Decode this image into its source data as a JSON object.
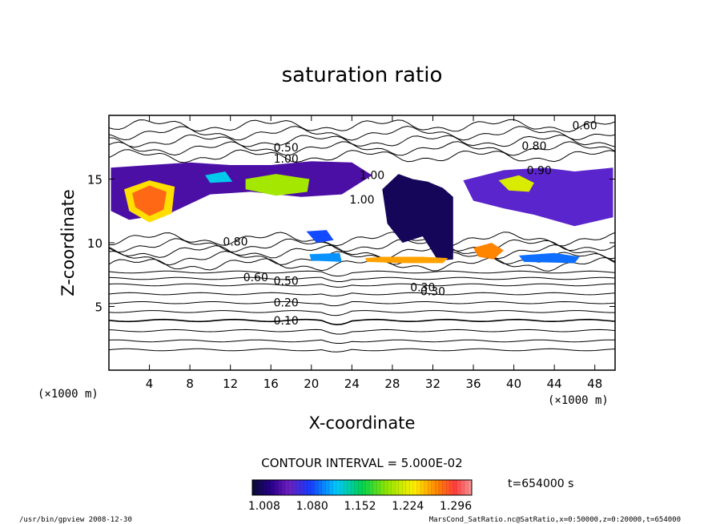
{
  "chart_data": {
    "type": "heatmap",
    "title": "saturation ratio",
    "xlabel": "X-coordinate",
    "ylabel": "Z-coordinate",
    "x_unit_label": "(×1000 m)",
    "y_unit_label": "(×1000 m)",
    "xlim": [
      0,
      50
    ],
    "ylim": [
      0,
      20
    ],
    "x_ticks": [
      4,
      8,
      12,
      16,
      20,
      24,
      28,
      32,
      36,
      40,
      44,
      48
    ],
    "y_ticks": [
      5,
      10,
      15
    ],
    "contour_lines_z": [
      1.6,
      2.3,
      3.1,
      3.9,
      4.6,
      5.3,
      6.0,
      6.7,
      7.2,
      7.7
    ],
    "contour_labels": [
      {
        "text": "0.10",
        "x": 17.5,
        "z": 3.9
      },
      {
        "text": "0.20",
        "x": 17.5,
        "z": 5.3
      },
      {
        "text": "0.30",
        "x": 32.0,
        "z": 6.2
      },
      {
        "text": "0.50",
        "x": 17.5,
        "z": 7.0
      },
      {
        "text": "0.60",
        "x": 14.5,
        "z": 7.3
      },
      {
        "text": "0.30",
        "x": 31.0,
        "z": 6.5
      },
      {
        "text": "0.80",
        "x": 12.5,
        "z": 10.1
      },
      {
        "text": "0.80",
        "x": 42.0,
        "z": 17.6
      },
      {
        "text": "0.90",
        "x": 42.5,
        "z": 15.7
      },
      {
        "text": "0.60",
        "x": 47.0,
        "z": 19.2
      },
      {
        "text": "0.50",
        "x": 17.5,
        "z": 17.5
      },
      {
        "text": "1.00",
        "x": 17.5,
        "z": 16.6
      },
      {
        "text": "1.00",
        "x": 26.0,
        "z": 15.3
      },
      {
        "text": "1.00",
        "x": 25.0,
        "z": 13.4
      }
    ],
    "colorbar_ticks": [
      "1.008",
      "1.080",
      "1.152",
      "1.224",
      "1.296"
    ],
    "colorbar_range": [
      0.99,
      1.32
    ],
    "fill_regions": [
      {
        "x": [
          0.2,
          4.0,
          8.0,
          12.0,
          16.0,
          20.0,
          24.0,
          26.0,
          23.0,
          19.0,
          14.0,
          10.0,
          6.0,
          2.0,
          0.2
        ],
        "z": [
          15.9,
          16.1,
          16.3,
          16.1,
          16.1,
          16.4,
          16.3,
          15.3,
          13.8,
          13.6,
          14.0,
          13.8,
          12.3,
          11.8,
          12.5
        ],
        "level": 1.03
      },
      {
        "x": [
          1.5,
          4.0,
          6.5,
          6.2,
          4.0,
          2.0
        ],
        "z": [
          14.2,
          14.9,
          14.4,
          12.3,
          11.6,
          12.5
        ],
        "level": 1.24
      },
      {
        "x": [
          2.3,
          4.0,
          5.7,
          5.4,
          4.0,
          2.6
        ],
        "z": [
          13.9,
          14.5,
          14.0,
          12.6,
          12.1,
          12.8
        ],
        "level": 1.28
      },
      {
        "x": [
          13.5,
          16.5,
          19.8,
          19.6,
          16.5,
          13.5
        ],
        "z": [
          15.0,
          15.4,
          15.0,
          14.0,
          13.7,
          14.2
        ],
        "level": 1.2
      },
      {
        "x": [
          9.5,
          11.5,
          12.2,
          10.0
        ],
        "z": [
          15.3,
          15.6,
          14.8,
          14.7
        ],
        "level": 1.12
      },
      {
        "x": [
          35.0,
          39.0,
          43.0,
          46.0,
          49.8,
          49.8,
          46.0,
          42.0,
          39.0,
          36.0
        ],
        "z": [
          14.9,
          15.7,
          15.9,
          15.6,
          15.9,
          12.0,
          11.3,
          12.2,
          12.7,
          13.3
        ],
        "level": 1.05
      },
      {
        "x": [
          38.5,
          40.5,
          42.0,
          41.5,
          39.5
        ],
        "z": [
          14.9,
          15.3,
          14.7,
          14.0,
          14.1
        ],
        "level": 1.22
      },
      {
        "x": [
          27.0,
          28.6,
          30.0,
          31.5,
          33.0,
          34.0,
          34.0,
          32.5,
          31.0,
          29.0,
          27.5
        ],
        "z": [
          14.2,
          15.4,
          15.0,
          14.8,
          14.3,
          13.6,
          8.7,
          8.6,
          10.5,
          10.0,
          11.5
        ],
        "level": 1.0
      },
      {
        "x": [
          25.3,
          27.0,
          29.0,
          31.0,
          33.5,
          33.0,
          29.0,
          25.5
        ],
        "z": [
          8.8,
          8.9,
          8.9,
          8.9,
          8.8,
          8.4,
          8.4,
          8.5
        ],
        "level": 1.26
      },
      {
        "x": [
          36.0,
          37.8,
          39.0,
          38.0,
          36.5
        ],
        "z": [
          9.6,
          10.0,
          9.4,
          8.7,
          8.9
        ],
        "level": 1.27
      },
      {
        "x": [
          40.5,
          44.0,
          46.5,
          46.0,
          41.0
        ],
        "z": [
          9.0,
          9.2,
          8.9,
          8.4,
          8.5
        ],
        "level": 1.09
      },
      {
        "x": [
          19.5,
          21.5,
          22.2,
          20.5
        ],
        "z": [
          10.9,
          11.0,
          10.2,
          10.0
        ],
        "level": 1.08
      },
      {
        "x": [
          19.8,
          22.8,
          23.0,
          20.0
        ],
        "z": [
          9.1,
          9.2,
          8.5,
          8.6
        ],
        "level": 1.1
      }
    ]
  },
  "time_label": "t=654000 s",
  "contour_interval": "CONTOUR INTERVAL = 5.000E-02",
  "footer_left": "/usr/bin/gpview  2008-12-30",
  "footer_right": "MarsCond_SatRatio.nc@SatRatio,x=0:50000,z=0:20000,t=654000"
}
